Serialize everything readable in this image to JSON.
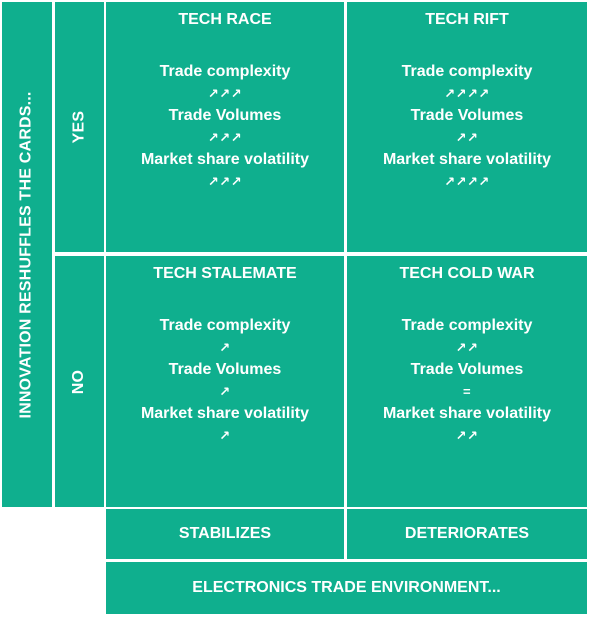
{
  "axis_y_title": "INNOVATION RESHUFFLES THE CARDS...",
  "rows": [
    {
      "label": "YES"
    },
    {
      "label": "NO"
    }
  ],
  "columns": [
    {
      "label": "STABILIZES"
    },
    {
      "label": "DETERIORATES"
    }
  ],
  "axis_x_title": "ELECTRONICS TRADE ENVIRONMENT...",
  "quadrants": {
    "tech_race": {
      "title": "TECH RACE",
      "metrics": [
        {
          "label": "Trade complexity",
          "trend": "↗↗↗"
        },
        {
          "label": "Trade Volumes",
          "trend": "↗↗↗"
        },
        {
          "label": "Market share volatility",
          "trend": "↗↗↗"
        }
      ]
    },
    "tech_rift": {
      "title": "TECH RIFT",
      "metrics": [
        {
          "label": "Trade complexity",
          "trend": "↗↗↗↗"
        },
        {
          "label": "Trade Volumes",
          "trend": "↗↗"
        },
        {
          "label": "Market share volatility",
          "trend": "↗↗↗↗"
        }
      ]
    },
    "tech_stalemate": {
      "title": "TECH STALEMATE",
      "metrics": [
        {
          "label": "Trade complexity",
          "trend": "↗"
        },
        {
          "label": "Trade Volumes",
          "trend": "↗"
        },
        {
          "label": "Market share volatility",
          "trend": "↗"
        }
      ]
    },
    "tech_cold_war": {
      "title": "TECH COLD WAR",
      "metrics": [
        {
          "label": "Trade complexity",
          "trend": "↗↗"
        },
        {
          "label": "Trade Volumes",
          "trend": "="
        },
        {
          "label": "Market share volatility",
          "trend": "↗↗"
        }
      ]
    }
  },
  "colors": {
    "fill": "#0faf8e",
    "text": "#ffffff",
    "border": "#ffffff"
  }
}
